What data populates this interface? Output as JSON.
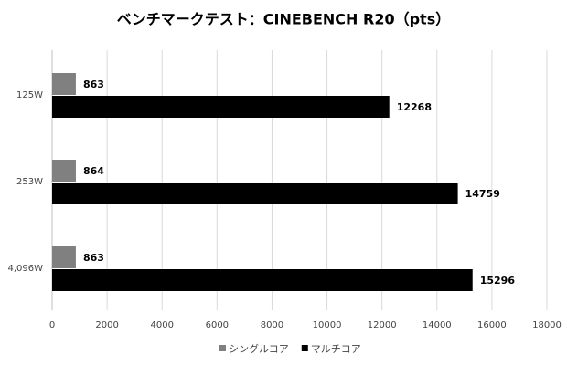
{
  "chart_data": {
    "type": "hbar",
    "title": "ベンチマークテスト：CINEBENCH R20（pts）",
    "categories": [
      "125W",
      "253W",
      "4,096W"
    ],
    "series": [
      {
        "name": "シングルコア",
        "color": "#808080",
        "values": [
          863,
          864,
          863
        ]
      },
      {
        "name": "マルチコア",
        "color": "#000000",
        "values": [
          12268,
          14759,
          15296
        ]
      }
    ],
    "xlim": [
      0,
      18000
    ],
    "xticks": [
      0,
      2000,
      4000,
      6000,
      8000,
      10000,
      12000,
      14000,
      16000,
      18000
    ],
    "grid": true,
    "legend": "bottom"
  }
}
